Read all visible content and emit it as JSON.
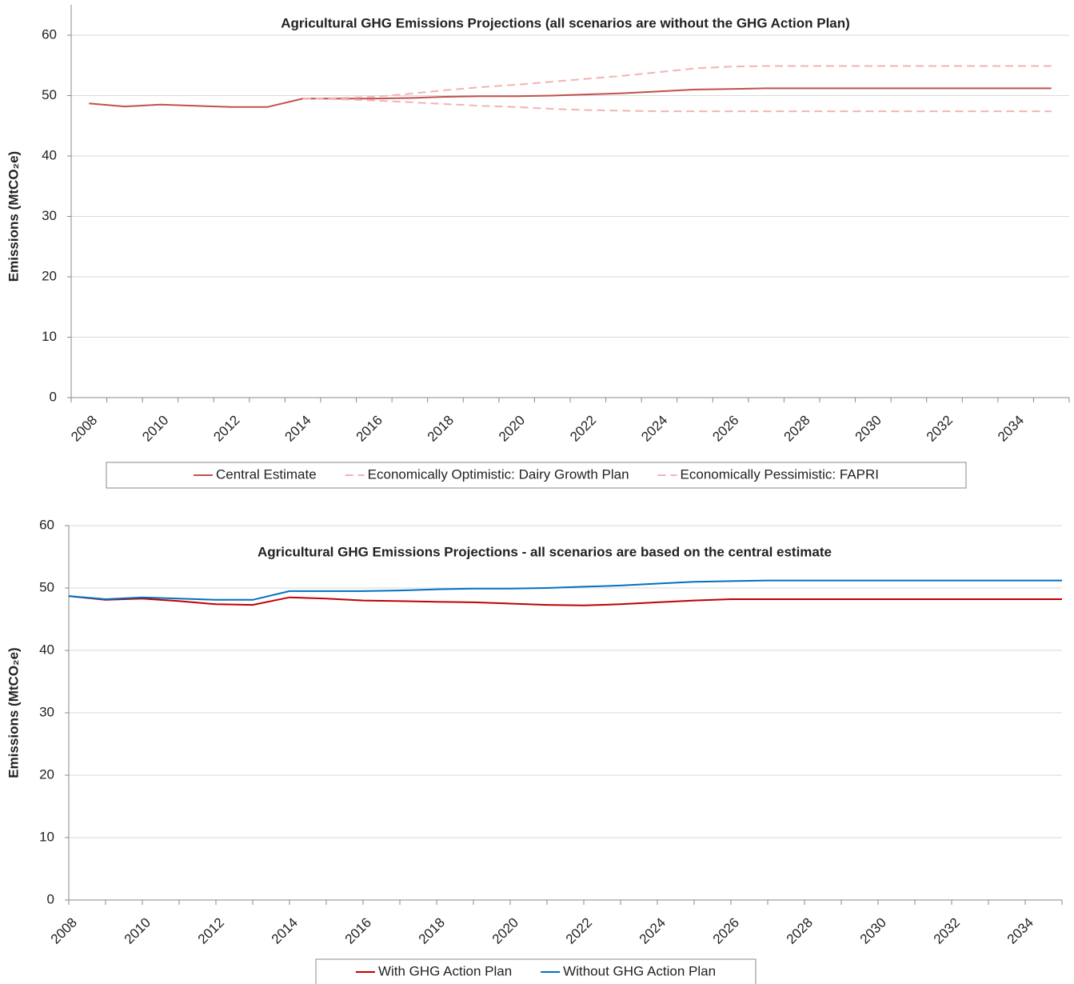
{
  "chart_data": [
    {
      "type": "line",
      "title": "Agricultural GHG Emissions Projections (all scenarios are without the GHG Action Plan)",
      "y_label": "Emissions (MtCO₂e)",
      "categories": [
        "2008",
        null,
        "2010",
        null,
        "2012",
        null,
        "2014",
        null,
        "2016",
        null,
        "2018",
        null,
        "2020",
        null,
        "2022",
        null,
        "2024",
        null,
        "2026",
        null,
        "2028",
        null,
        "2030",
        null,
        "2032",
        null,
        "2034",
        null
      ],
      "series": [
        {
          "name": "Central Estimate",
          "color": "#c0504d",
          "line_style": "solid",
          "values": [
            48.7,
            48.2,
            48.5,
            48.3,
            48.1,
            48.1,
            49.5,
            49.5,
            49.5,
            49.6,
            49.8,
            49.9,
            49.9,
            50.0,
            50.2,
            50.4,
            50.7,
            51.0,
            51.1,
            51.2,
            51.2,
            51.2,
            51.2,
            51.2,
            51.2,
            51.2,
            51.2,
            51.2
          ]
        },
        {
          "name": "Economically Optimistic: Dairy Growth Plan",
          "color": "#f2b3b3",
          "line_style": "dashed",
          "values": [
            null,
            null,
            null,
            null,
            null,
            null,
            49.5,
            49.6,
            49.8,
            50.3,
            50.9,
            51.4,
            51.8,
            52.3,
            52.8,
            53.3,
            53.9,
            54.5,
            54.8,
            54.9,
            54.9,
            54.9,
            54.9,
            54.9,
            54.9,
            54.9,
            54.9,
            54.9
          ]
        },
        {
          "name": "Economically Pessimistic: FAPRI",
          "color": "#f2b3b3",
          "line_style": "dashed",
          "values": [
            null,
            null,
            null,
            null,
            null,
            null,
            49.5,
            49.4,
            49.2,
            48.9,
            48.6,
            48.3,
            48.1,
            47.8,
            47.6,
            47.5,
            47.4,
            47.4,
            47.4,
            47.4,
            47.4,
            47.4,
            47.4,
            47.4,
            47.4,
            47.4,
            47.4,
            47.4
          ]
        }
      ],
      "ylim": [
        0,
        60
      ],
      "yticks": [
        0,
        10,
        20,
        30,
        40,
        50,
        60
      ],
      "grid": true,
      "legend": "bottom"
    },
    {
      "type": "line",
      "title": "Agricultural GHG Emissions Projections - all scenarios are based on the central estimate",
      "y_label": "Emissions (MtCO₂e)",
      "categories": [
        "2008",
        null,
        "2010",
        null,
        "2012",
        null,
        "2014",
        null,
        "2016",
        null,
        "2018",
        null,
        "2020",
        null,
        "2022",
        null,
        "2024",
        null,
        "2026",
        null,
        "2028",
        null,
        "2030",
        null,
        "2032",
        null,
        "2034",
        null
      ],
      "series": [
        {
          "name": "With GHG Action Plan",
          "color": "#c00000",
          "line_style": "solid",
          "values": [
            48.7,
            48.1,
            48.3,
            47.9,
            47.4,
            47.3,
            48.5,
            48.3,
            48.0,
            47.9,
            47.8,
            47.7,
            47.5,
            47.3,
            47.2,
            47.4,
            47.7,
            48.0,
            48.2,
            48.2,
            48.2,
            48.2,
            48.2,
            48.2,
            48.2,
            48.2,
            48.2,
            48.2
          ]
        },
        {
          "name": "Without GHG Action Plan",
          "color": "#0070c0",
          "line_style": "solid",
          "values": [
            48.7,
            48.2,
            48.5,
            48.3,
            48.1,
            48.1,
            49.5,
            49.5,
            49.5,
            49.6,
            49.8,
            49.9,
            49.9,
            50.0,
            50.2,
            50.4,
            50.7,
            51.0,
            51.1,
            51.2,
            51.2,
            51.2,
            51.2,
            51.2,
            51.2,
            51.2,
            51.2,
            51.2
          ]
        }
      ],
      "ylim": [
        0,
        60
      ],
      "yticks": [
        0,
        10,
        20,
        30,
        40,
        50,
        60
      ],
      "grid": true,
      "legend": "bottom"
    }
  ]
}
